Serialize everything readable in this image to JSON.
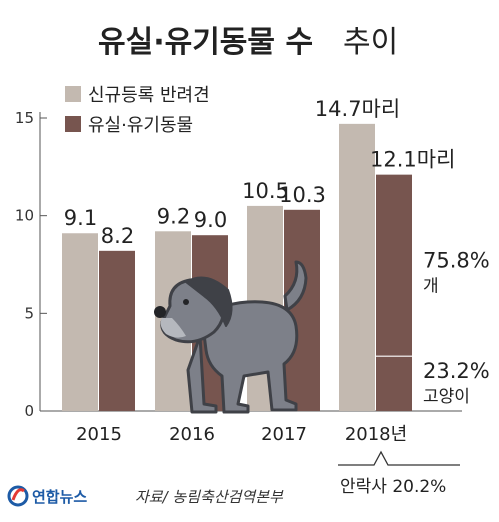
{
  "title_main": "유실·유기동물 수",
  "title_sub": "추이",
  "colors": {
    "registered": "#c3b9b0",
    "abandoned": "#77554f",
    "dog": "#7d8089",
    "dog_dark": "#3f4147"
  },
  "chart_data": {
    "type": "bar",
    "categories": [
      "2015",
      "2016",
      "2017",
      "2018년"
    ],
    "series": [
      {
        "name": "신규등록 반려견",
        "values": [
          9.1,
          9.2,
          10.5,
          14.7
        ],
        "labels": [
          "9.1",
          "9.2",
          "10.5",
          "14.7마리"
        ]
      },
      {
        "name": "유실·유기동물",
        "values": [
          8.2,
          9.0,
          10.3,
          12.1
        ],
        "labels": [
          "8.2",
          "9.0",
          "10.3",
          "12.1마리"
        ]
      }
    ],
    "yticks": [
      0,
      5,
      10,
      15
    ],
    "ylim": [
      0,
      15
    ],
    "legend_position": "top-left",
    "breakdown_2018": [
      {
        "label_pct": "75.8%",
        "label_name": "개",
        "share": 75.8
      },
      {
        "label_pct": "23.2%",
        "label_name": "고양이",
        "share": 23.2
      }
    ],
    "euthanasia_note": "안락사 20.2%"
  },
  "source": "자료/ 농림축산검역본부",
  "logo": "연합뉴스"
}
